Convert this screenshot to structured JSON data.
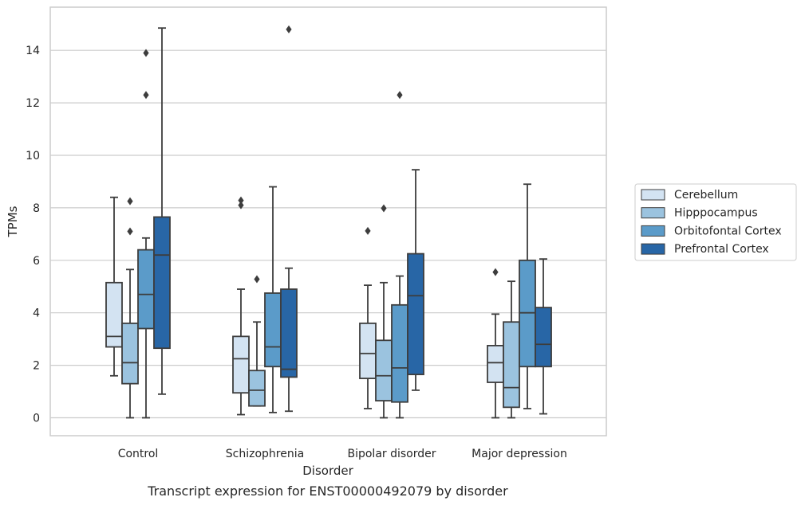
{
  "caption": "Transcript expression for ENST00000492079 by disorder",
  "chart_data": {
    "type": "boxplot",
    "title": "",
    "xlabel": "Disorder",
    "ylabel": "TPMs",
    "ylim": [
      -0.7,
      15.4
    ],
    "yticks": [
      0,
      2,
      4,
      6,
      8,
      10,
      12,
      14
    ],
    "grid": "horizontal",
    "legend_position": "right",
    "categories": [
      "Control",
      "Schizophrenia",
      "Bipolar disorder",
      "Major depression"
    ],
    "series": [
      {
        "name": "Cerebellum",
        "color": "#d3e3f2",
        "boxes": [
          {
            "whislo": 1.6,
            "q1": 2.7,
            "med": 3.1,
            "q3": 5.15,
            "whishi": 8.4,
            "fliers": []
          },
          {
            "whislo": 0.12,
            "q1": 0.95,
            "med": 2.25,
            "q3": 3.1,
            "whishi": 4.9,
            "fliers": [
              8.1,
              8.28
            ]
          },
          {
            "whislo": 0.35,
            "q1": 1.5,
            "med": 2.45,
            "q3": 3.6,
            "whishi": 5.05,
            "fliers": [
              7.12
            ]
          },
          {
            "whislo": 0.0,
            "q1": 1.35,
            "med": 2.1,
            "q3": 2.75,
            "whishi": 3.95,
            "fliers": [
              5.55
            ]
          }
        ]
      },
      {
        "name": "Hipppocampus",
        "color": "#9bc3df",
        "boxes": [
          {
            "whislo": 0.0,
            "q1": 1.3,
            "med": 2.1,
            "q3": 3.6,
            "whishi": 5.65,
            "fliers": [
              7.1,
              8.25
            ]
          },
          {
            "whislo": 0.45,
            "q1": 0.45,
            "med": 1.05,
            "q3": 1.8,
            "whishi": 3.65,
            "fliers": [
              5.28
            ]
          },
          {
            "whislo": 0.0,
            "q1": 0.65,
            "med": 1.6,
            "q3": 2.95,
            "whishi": 5.15,
            "fliers": [
              7.98
            ]
          },
          {
            "whislo": 0.0,
            "q1": 0.4,
            "med": 1.15,
            "q3": 3.65,
            "whishi": 5.2,
            "fliers": []
          }
        ]
      },
      {
        "name": "Orbitofontal Cortex",
        "color": "#5b9bc9",
        "boxes": [
          {
            "whislo": 0.0,
            "q1": 3.4,
            "med": 4.7,
            "q3": 6.4,
            "whishi": 6.85,
            "fliers": [
              12.3,
              13.9
            ]
          },
          {
            "whislo": 0.2,
            "q1": 1.95,
            "med": 2.7,
            "q3": 4.75,
            "whishi": 8.8,
            "fliers": []
          },
          {
            "whislo": 0.0,
            "q1": 0.6,
            "med": 1.9,
            "q3": 4.3,
            "whishi": 5.4,
            "fliers": [
              12.3
            ]
          },
          {
            "whislo": 0.35,
            "q1": 1.95,
            "med": 4.0,
            "q3": 6.0,
            "whishi": 8.9,
            "fliers": []
          }
        ]
      },
      {
        "name": "Prefrontal Cortex",
        "color": "#2866a6",
        "boxes": [
          {
            "whislo": 0.9,
            "q1": 2.65,
            "med": 6.2,
            "q3": 7.65,
            "whishi": 14.85,
            "fliers": []
          },
          {
            "whislo": 0.25,
            "q1": 1.55,
            "med": 1.85,
            "q3": 4.9,
            "whishi": 5.7,
            "fliers": [
              14.8
            ]
          },
          {
            "whislo": 1.05,
            "q1": 1.65,
            "med": 4.65,
            "q3": 6.25,
            "whishi": 9.45,
            "fliers": []
          },
          {
            "whislo": 0.15,
            "q1": 1.95,
            "med": 2.8,
            "q3": 4.2,
            "whishi": 6.05,
            "fliers": []
          }
        ]
      }
    ]
  }
}
